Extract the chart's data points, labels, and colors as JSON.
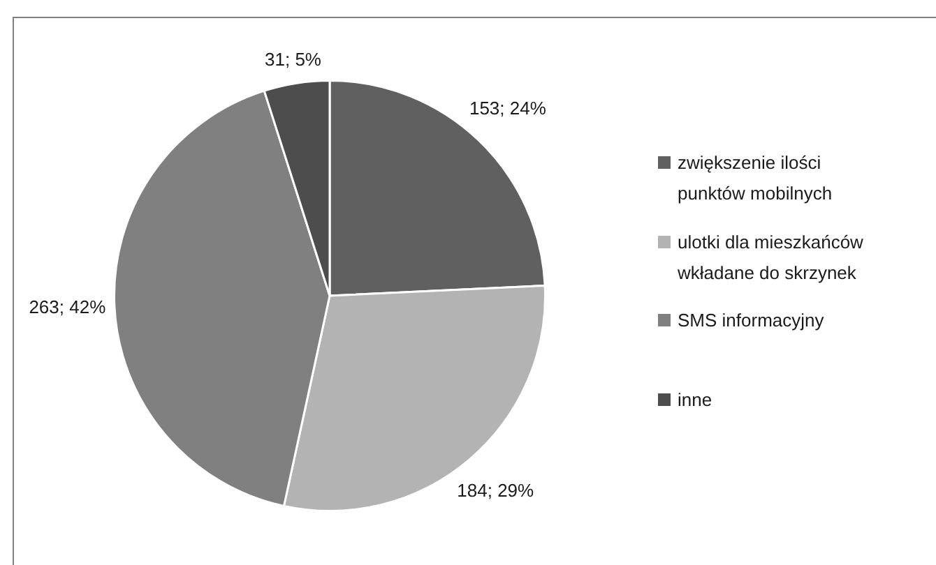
{
  "chart_data": {
    "type": "pie",
    "categories": [
      "zwiększenie ilości punktów mobilnych",
      "ulotki dla mieszkańców wkładane do skrzynek",
      "SMS informacyjny",
      "inne"
    ],
    "values": [
      153,
      184,
      263,
      31
    ],
    "colors": [
      "#606060",
      "#b3b3b3",
      "#808080",
      "#4d4d4d"
    ],
    "value_labels": [
      "153; 24%",
      "184; 29%",
      "263; 42%",
      "31; 5%"
    ],
    "legend": "right"
  }
}
